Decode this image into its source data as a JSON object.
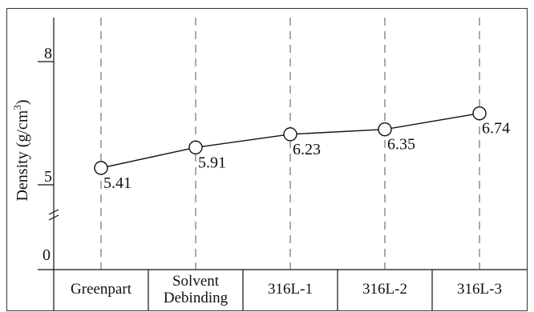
{
  "chart_data": {
    "type": "line",
    "categories": [
      "Greenpart",
      "Solvent\nDebinding",
      "316L-1",
      "316L-2",
      "316L-3"
    ],
    "values": [
      5.41,
      5.91,
      6.23,
      6.35,
      6.74
    ],
    "data_labels": [
      "5.41",
      "5.91",
      "6.23",
      "6.35",
      "6.74"
    ],
    "ylabel": "Density (g/cm",
    "ylabel_sup": "3",
    "ylabel_close": ")",
    "y_ticks": [
      {
        "label": "0",
        "value": 0
      },
      {
        "label": "5",
        "value": 5
      },
      {
        "label": "8",
        "value": 8
      }
    ],
    "axis_break": true,
    "ylim_upper": [
      4.5,
      8.5
    ],
    "vertical_gridlines": "dashed",
    "marker": "open-circle",
    "colors": {
      "line": "#111111",
      "grid": "#555555",
      "frame": "#333333",
      "text": "#111111"
    }
  }
}
